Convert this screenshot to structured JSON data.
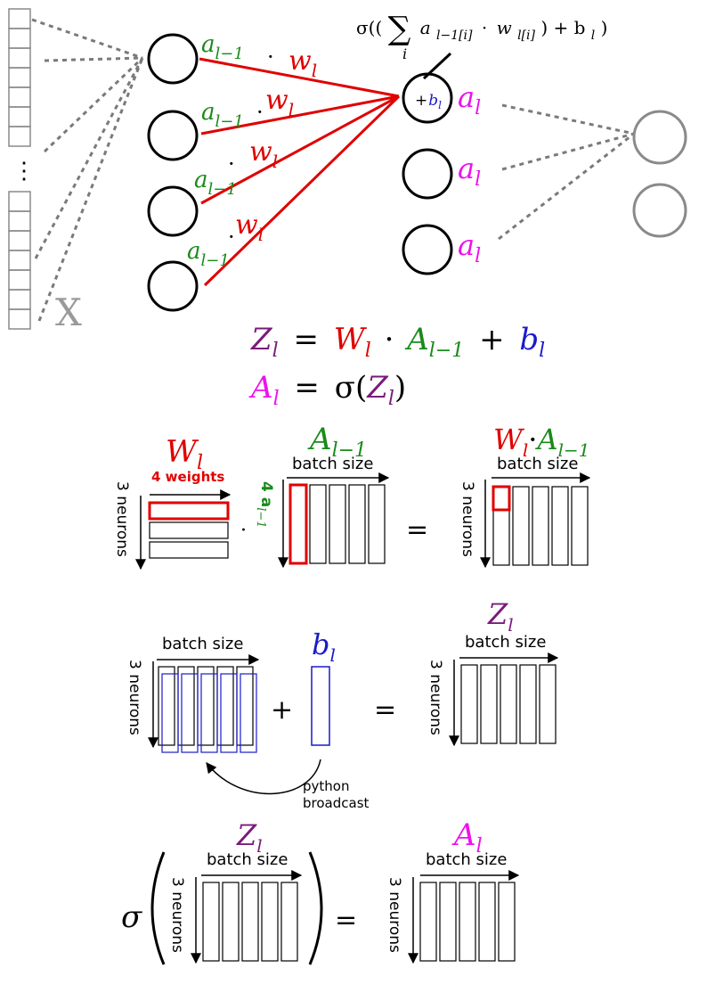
{
  "colors": {
    "weight": "#e00000",
    "activation_prev": "#1a8a1a",
    "bias": "#1a1acc",
    "activation": "#ee11ee",
    "z": "#7a1a7a",
    "black": "#000000",
    "gray": "#8a8a8a",
    "dotted": "#7a7a7a"
  },
  "network": {
    "input_label": "X",
    "vertical_dots": "⋮",
    "a_prev": "a",
    "a_prev_sub": "l−1",
    "w": "w",
    "w_sub": "l",
    "a_out": "a",
    "a_out_sub": "l",
    "plus_bias": "+b",
    "plus_bias_sub": "l",
    "dot": "·",
    "sigma_formula": {
      "sigma_open": "σ((",
      "sum": "∑",
      "sum_index": "i",
      "term_a": "a",
      "term_a_sub": "l−1[i]",
      "times": "·",
      "term_w": "w",
      "term_w_sub": "l[i]",
      "close_part": ") + b",
      "close_sub": "l",
      "close_paren": ")"
    }
  },
  "equations": {
    "eq1": {
      "z": "Z",
      "z_sub": "l",
      "equals": "=",
      "w": "W",
      "w_sub": "l",
      "dot": "·",
      "a": "A",
      "a_sub": "l−1",
      "plus": "+",
      "b": "b",
      "b_sub": "l"
    },
    "eq2": {
      "a": "A",
      "a_sub": "l",
      "equals": "=",
      "sigma": "σ(",
      "z": "Z",
      "z_sub": "l",
      "close": ")"
    }
  },
  "matmul": {
    "w_label": "W",
    "w_sub": "l",
    "weights_label": "4 weights",
    "neurons_label": "3 neurons",
    "a_label": "A",
    "a_sub": "l−1",
    "batch_label": "batch size",
    "rows_label": "4 a",
    "rows_sub": "l−1",
    "dot": "·",
    "equals": "=",
    "result_w": "W",
    "result_w_sub": "l",
    "result_dot": "·",
    "result_a": "A",
    "result_a_sub": "l−1"
  },
  "bias_add": {
    "batch_label": "batch size",
    "neurons_label": "3 neurons",
    "plus": "+",
    "b_label": "b",
    "b_sub": "l",
    "equals": "=",
    "z_label": "Z",
    "z_sub": "l",
    "broadcast_label": [
      "python",
      "broadcast"
    ]
  },
  "activation": {
    "sigma": "σ",
    "z_label": "Z",
    "z_sub": "l",
    "batch_label": "batch size",
    "neurons_label": "3 neurons",
    "equals": "=",
    "a_label": "A",
    "a_sub": "l"
  }
}
